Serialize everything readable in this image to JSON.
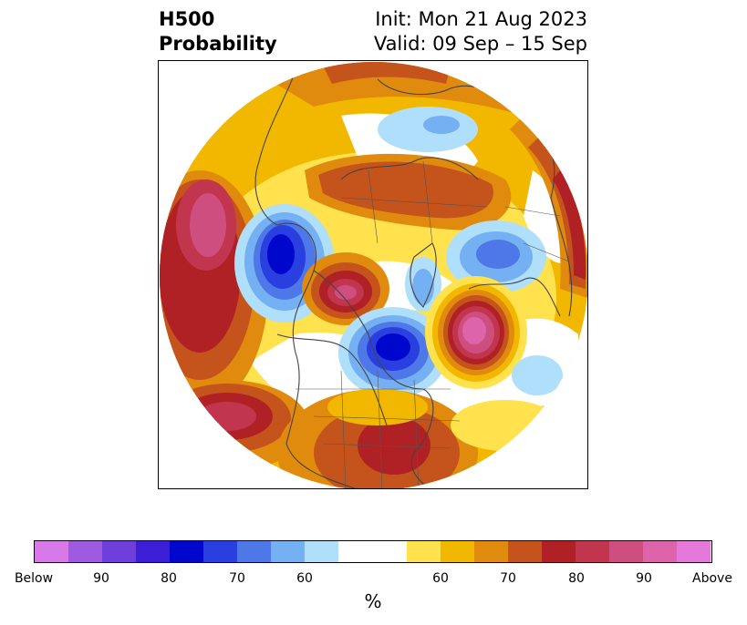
{
  "title": {
    "left_line1": "H500",
    "left_line2": "Probability",
    "right_line1": "Init: Mon 21 Aug 2023",
    "right_line2": "Valid: 09 Sep – 15 Sep"
  },
  "colorbar": {
    "colors": [
      "#d77ae8",
      "#9e5ae0",
      "#6e3fdb",
      "#3b1ed6",
      "#0007cc",
      "#2a3fe0",
      "#4e78e8",
      "#75b1f2",
      "#b0dffb",
      "#ffffff",
      "#ffffff",
      "#ffe24d",
      "#f2b800",
      "#e08a0e",
      "#c5531c",
      "#af2125",
      "#c2354e",
      "#cf4e80",
      "#dd63aa",
      "#e579da"
    ],
    "tick_labels": [
      "Below",
      "90",
      "80",
      "70",
      "60",
      "60",
      "70",
      "80",
      "90",
      "Above"
    ],
    "unit": "%"
  },
  "map": {
    "projection": "north-polar-stereographic",
    "features": [
      "coastlines",
      "country-borders",
      "us-state-borders"
    ],
    "anomaly_centers": [
      {
        "name": "pacific-positive",
        "sign": "above",
        "level": "90"
      },
      {
        "name": "alaska-negative",
        "sign": "below",
        "level": "80"
      },
      {
        "name": "canada-west-positive",
        "sign": "above",
        "level": "90"
      },
      {
        "name": "hudson-bay-negative",
        "sign": "below",
        "level": "80"
      },
      {
        "name": "north-atlantic-positive",
        "sign": "above",
        "level": "Above"
      },
      {
        "name": "southeast-us-positive",
        "sign": "above",
        "level": "80"
      },
      {
        "name": "siberia-negative",
        "sign": "below",
        "level": "60"
      },
      {
        "name": "europe-negative",
        "sign": "below",
        "level": "70"
      },
      {
        "name": "russia-positive",
        "sign": "above",
        "level": "80"
      }
    ]
  }
}
